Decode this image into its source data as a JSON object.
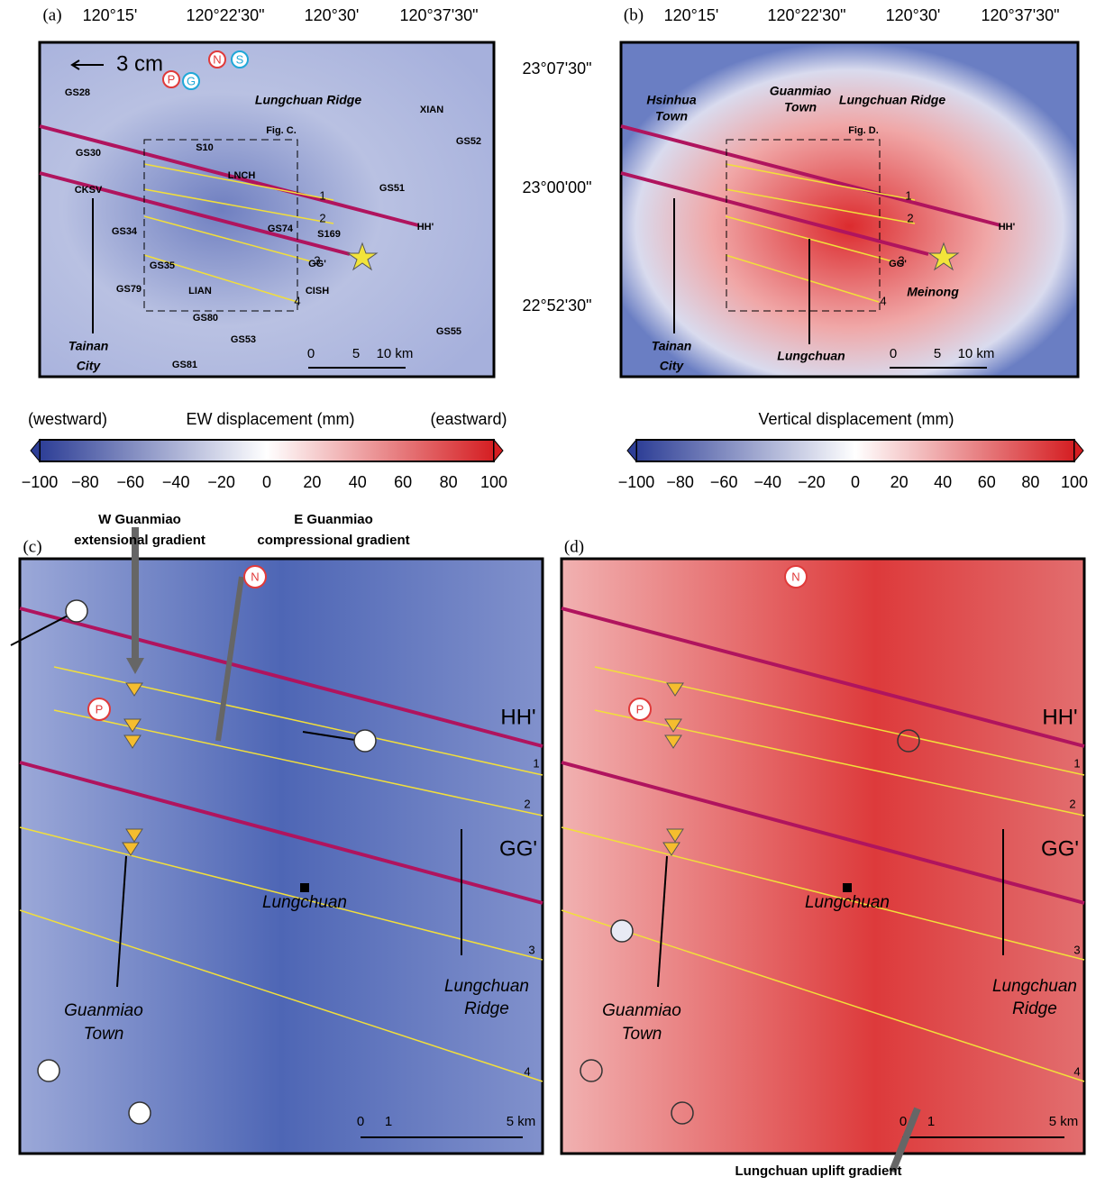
{
  "lon_labels": [
    "120°15'",
    "120°22'30\"",
    "120°30'",
    "120°37'30\""
  ],
  "lat_labels": [
    "23°07'30\"",
    "23°00'00\"",
    "22°52'30\""
  ],
  "panel_a": {
    "label": "(a)",
    "arrow_scale": "3 cm",
    "markers": [
      "P",
      "G",
      "N",
      "S"
    ],
    "stations": [
      "GS28",
      "GS30",
      "CKSV",
      "GS34",
      "GS35",
      "GS79",
      "LIAN",
      "GS80",
      "GS53",
      "GS81",
      "S10",
      "LNCH",
      "GS74",
      "S169",
      "CISH",
      "GS51",
      "XIAN",
      "GS52",
      "GS55"
    ],
    "ridge": "Lungchuan Ridge",
    "fig_ref": "Fig. C.",
    "profiles": [
      "HH'",
      "GG'"
    ],
    "lines": [
      "1",
      "2",
      "3",
      "4"
    ],
    "city": [
      "Tainan",
      "City"
    ],
    "scale": [
      "0",
      "5",
      "10 km"
    ]
  },
  "panel_b": {
    "label": "(b)",
    "towns": [
      [
        "Hsinhua",
        "Town"
      ],
      [
        "Guanmiao",
        "Town"
      ]
    ],
    "ridge": "Lungchuan Ridge",
    "fig_ref": "Fig. D.",
    "profiles": [
      "HH'",
      "GG'"
    ],
    "lines": [
      "1",
      "2",
      "3",
      "4"
    ],
    "meinong": "Meinong",
    "city": [
      "Tainan",
      "City"
    ],
    "lungchuan": "Lungchuan",
    "scale": [
      "0",
      "5",
      "10 km"
    ]
  },
  "colorbar_a": {
    "title": "EW displacement (mm)",
    "left": "(westward)",
    "right": "(eastward)",
    "ticks": [
      "−100",
      "−80",
      "−60",
      "−40",
      "−20",
      "0",
      "20",
      "40",
      "60",
      "80",
      "100"
    ]
  },
  "colorbar_b": {
    "title": "Vertical displacement (mm)",
    "ticks": [
      "−100",
      "−80",
      "−60",
      "−40",
      "−20",
      "0",
      "20",
      "40",
      "60",
      "80",
      "100"
    ]
  },
  "panel_c": {
    "label": "(c)",
    "gradient_w": [
      "W Guanmiao",
      "extensional gradient"
    ],
    "gradient_e": [
      "E Guanmiao",
      "compressional gradient"
    ],
    "markers": [
      "N",
      "P"
    ],
    "profiles": [
      "HH'",
      "GG'"
    ],
    "lines": [
      "1",
      "2",
      "3",
      "4"
    ],
    "lungchuan": "Lungchuan",
    "town": [
      "Guanmiao",
      "Town"
    ],
    "ridge": [
      "Lungchuan",
      "Ridge"
    ],
    "scale": [
      "0",
      "1",
      "5 km"
    ]
  },
  "panel_d": {
    "label": "(d)",
    "markers": [
      "N",
      "P"
    ],
    "profiles": [
      "HH'",
      "GG'"
    ],
    "lines": [
      "1",
      "2",
      "3",
      "4"
    ],
    "lungchuan": "Lungchuan",
    "town": [
      "Guanmiao",
      "Town"
    ],
    "ridge": [
      "Lungchuan",
      "Ridge"
    ],
    "scale": [
      "0",
      "1",
      "5 km"
    ],
    "uplift": "Lungchuan uplift gradient"
  }
}
